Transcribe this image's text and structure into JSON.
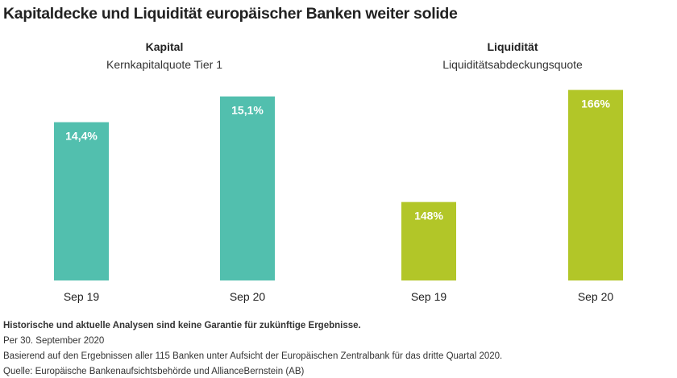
{
  "title": "Kapitaldecke und Liquidität europäischer Banken weiter solide",
  "chart_data": [
    {
      "type": "bar",
      "title": "Kapital",
      "subtitle": "Kernkapitalquote Tier 1",
      "categories": [
        "Sep 19",
        "Sep 20"
      ],
      "values": [
        14.4,
        15.1
      ],
      "labels": [
        "14,4%",
        "15,1%"
      ],
      "ylim": [
        10.1,
        15.53
      ],
      "color": "#52bfae"
    },
    {
      "type": "bar",
      "title": "Liquidität",
      "subtitle": "Liquiditätsabdeckungsquote",
      "categories": [
        "Sep 19",
        "Sep 20"
      ],
      "values": [
        148,
        166
      ],
      "labels": [
        "148%",
        "166%"
      ],
      "ylim": [
        135.4,
        167.5
      ],
      "color": "#b2c628"
    }
  ],
  "notes": {
    "disclaimer": "Historische und aktuelle Analysen sind keine Garantie für zukünftige Ergebnisse.",
    "date": "Per 30. September 2020",
    "basis": "Basierend auf den Ergebnissen aller 115 Banken unter Aufsicht der Europäischen Zentralbank für das dritte Quartal 2020.",
    "source": "Quelle: Europäische Bankenaufsichtsbehörde und AllianceBernstein (AB)"
  }
}
